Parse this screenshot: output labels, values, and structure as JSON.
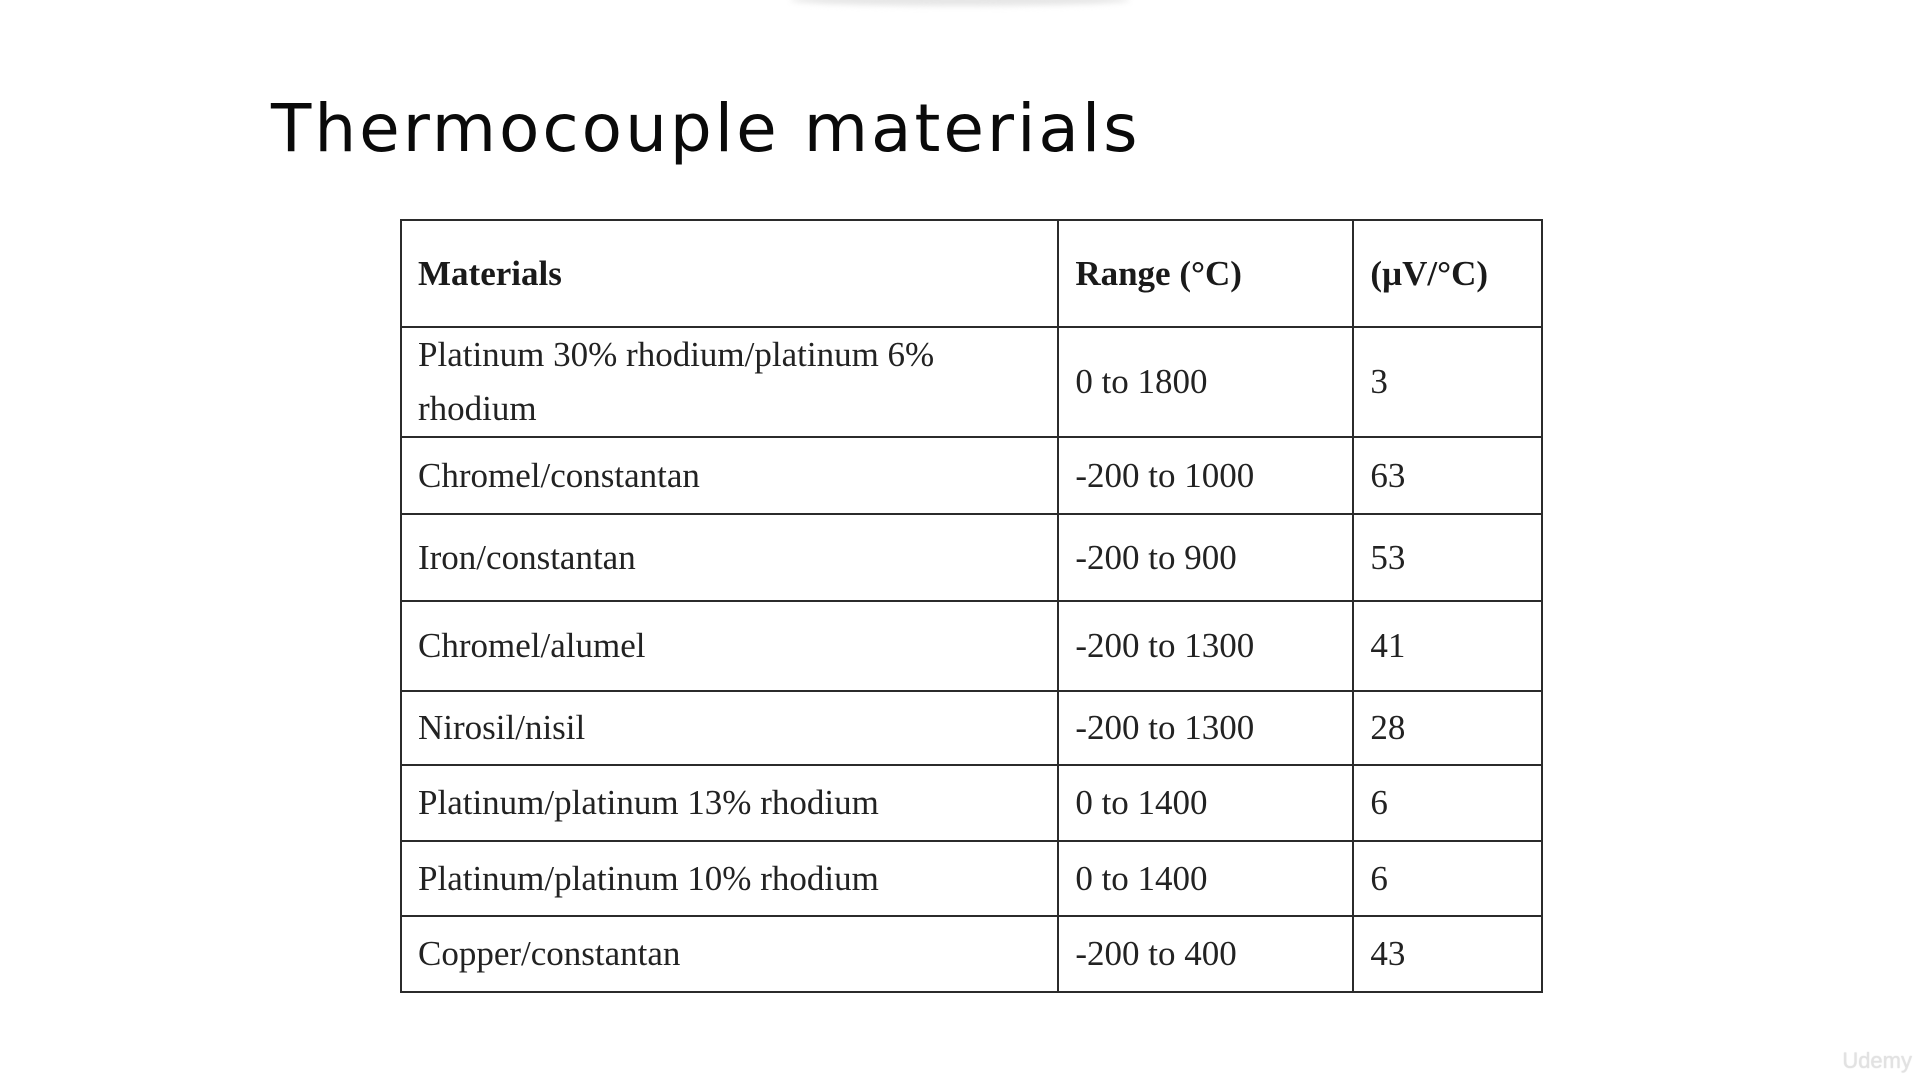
{
  "slide": {
    "title": "Thermocouple materials"
  },
  "table": {
    "headers": {
      "materials": "Materials",
      "range": "Range (°C)",
      "sensitivity": "(µV/°C)"
    },
    "rows": [
      {
        "material": "Platinum 30%  rhodium/platinum 6% rhodium",
        "range": "0 to 1800",
        "sensitivity": "3"
      },
      {
        "material": "Chromel/constantan",
        "range": "-200 to 1000",
        "sensitivity": "63"
      },
      {
        "material": "Iron/constantan",
        "range": "-200 to 900",
        "sensitivity": "53"
      },
      {
        "material": "Chromel/alumel",
        "range": "-200 to 1300",
        "sensitivity": "41"
      },
      {
        "material": "Nirosil/nisil",
        "range": "-200 to 1300",
        "sensitivity": "28"
      },
      {
        "material": "Platinum/platinum 13% rhodium",
        "range": "0 to 1400",
        "sensitivity": "6"
      },
      {
        "material": "Platinum/platinum 10% rhodium",
        "range": "0 to 1400",
        "sensitivity": "6"
      },
      {
        "material": "Copper/constantan",
        "range": "-200 to 400",
        "sensitivity": "43"
      }
    ]
  },
  "watermark": {
    "text": "Udemy"
  }
}
